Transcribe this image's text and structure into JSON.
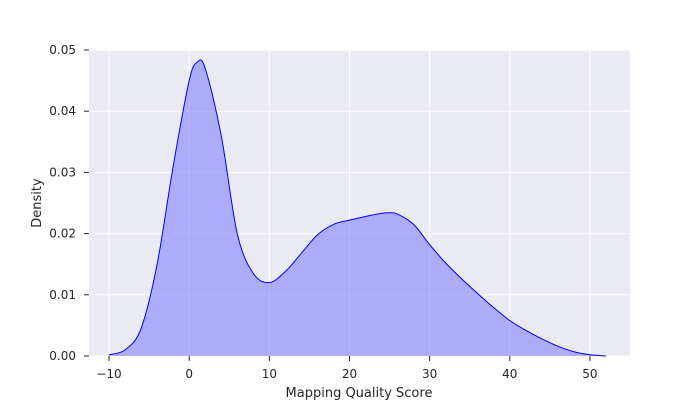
{
  "chart_data": {
    "type": "area",
    "xlabel": "Mapping Quality Score",
    "ylabel": "Density",
    "xlim": [
      -12.5,
      55
    ],
    "ylim": [
      0,
      0.05
    ],
    "x_ticks": [
      -10,
      0,
      10,
      20,
      30,
      40,
      50
    ],
    "y_ticks": [
      0.0,
      0.01,
      0.02,
      0.03,
      0.04,
      0.05
    ],
    "x_tick_labels": [
      "−10",
      "0",
      "10",
      "20",
      "30",
      "40",
      "50"
    ],
    "y_tick_labels": [
      "0.00",
      "0.01",
      "0.02",
      "0.03",
      "0.04",
      "0.05"
    ],
    "grid": true,
    "series": [
      {
        "x": [
          -10,
          -8,
          -6,
          -4,
          -2,
          0,
          1,
          2,
          4,
          6,
          8,
          10,
          12,
          14,
          16,
          18,
          20,
          22,
          24,
          25,
          26,
          28,
          30,
          32,
          34,
          36,
          38,
          40,
          42,
          44,
          46,
          48,
          50,
          52
        ],
        "y": [
          0.0002,
          0.001,
          0.0045,
          0.015,
          0.031,
          0.045,
          0.048,
          0.047,
          0.036,
          0.02,
          0.0135,
          0.012,
          0.0138,
          0.0168,
          0.0198,
          0.0215,
          0.0222,
          0.0228,
          0.0233,
          0.0234,
          0.0232,
          0.0215,
          0.0182,
          0.0152,
          0.0126,
          0.0102,
          0.0079,
          0.0058,
          0.0042,
          0.0028,
          0.0016,
          0.0007,
          0.0002,
          0.0
        ]
      }
    ],
    "colors": {
      "line": "#0000ff",
      "fill": "#8b8bff",
      "plot_bg": "#eaeaf2",
      "grid": "#ffffff"
    }
  }
}
